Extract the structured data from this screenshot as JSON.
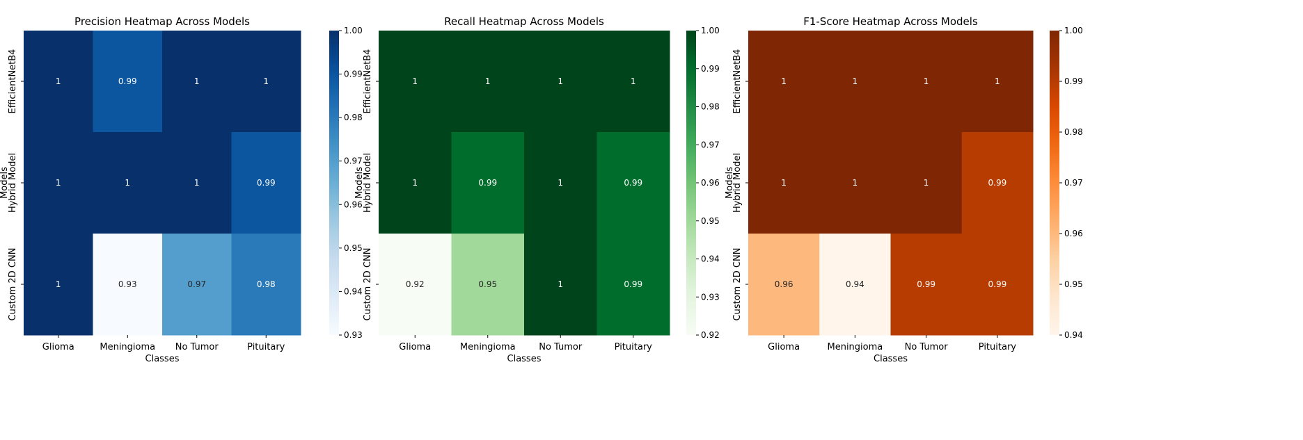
{
  "chart_data": [
    {
      "type": "heatmap",
      "title": "Precision Heatmap Across Models",
      "xlabel": "Classes",
      "ylabel": "Models",
      "x_categories": [
        "Glioma",
        "Meningioma",
        "No Tumor",
        "Pituitary"
      ],
      "y_categories": [
        "EfficientNetB4",
        "Hybrid Model",
        "Custom 2D CNN"
      ],
      "values": [
        [
          1.0,
          0.99,
          1.0,
          1.0
        ],
        [
          1.0,
          1.0,
          1.0,
          0.99
        ],
        [
          1.0,
          0.93,
          0.97,
          0.98
        ]
      ],
      "cell_labels": [
        [
          "1",
          "0.99",
          "1",
          "1"
        ],
        [
          "1",
          "1",
          "1",
          "0.99"
        ],
        [
          "1",
          "0.93",
          "0.97",
          "0.98"
        ]
      ],
      "colormap": "Blues",
      "color_low": "#f7fbff",
      "color_high": "#08306b",
      "vmin": 0.93,
      "vmax": 1.0,
      "colorbar_ticks": [
        "1.00",
        "0.99",
        "0.98",
        "0.97",
        "0.96",
        "0.95",
        "0.94",
        "0.93"
      ]
    },
    {
      "type": "heatmap",
      "title": "Recall Heatmap Across Models",
      "xlabel": "Classes",
      "ylabel": "Models",
      "x_categories": [
        "Glioma",
        "Meningioma",
        "No Tumor",
        "Pituitary"
      ],
      "y_categories": [
        "EfficientNetB4",
        "Hybrid Model",
        "Custom 2D CNN"
      ],
      "values": [
        [
          1.0,
          1.0,
          1.0,
          1.0
        ],
        [
          1.0,
          0.99,
          1.0,
          0.99
        ],
        [
          0.92,
          0.95,
          1.0,
          0.99
        ]
      ],
      "cell_labels": [
        [
          "1",
          "1",
          "1",
          "1"
        ],
        [
          "1",
          "0.99",
          "1",
          "0.99"
        ],
        [
          "0.92",
          "0.95",
          "1",
          "0.99"
        ]
      ],
      "colormap": "Greens",
      "color_low": "#f7fcf5",
      "color_high": "#00441b",
      "vmin": 0.92,
      "vmax": 1.0,
      "colorbar_ticks": [
        "1.00",
        "0.99",
        "0.98",
        "0.97",
        "0.96",
        "0.95",
        "0.94",
        "0.93",
        "0.92"
      ]
    },
    {
      "type": "heatmap",
      "title": "F1-Score Heatmap Across Models",
      "xlabel": "Classes",
      "ylabel": "Models",
      "x_categories": [
        "Glioma",
        "Meningioma",
        "No Tumor",
        "Pituitary"
      ],
      "y_categories": [
        "EfficientNetB4",
        "Hybrid Model",
        "Custom 2D CNN"
      ],
      "values": [
        [
          1.0,
          1.0,
          1.0,
          1.0
        ],
        [
          1.0,
          1.0,
          1.0,
          0.99
        ],
        [
          0.96,
          0.94,
          0.99,
          0.99
        ]
      ],
      "cell_labels": [
        [
          "1",
          "1",
          "1",
          "1"
        ],
        [
          "1",
          "1",
          "1",
          "0.99"
        ],
        [
          "0.96",
          "0.94",
          "0.99",
          "0.99"
        ]
      ],
      "colormap": "Oranges",
      "color_low": "#fff5eb",
      "color_high": "#7f2704",
      "vmin": 0.94,
      "vmax": 1.0,
      "colorbar_ticks": [
        "1.00",
        "0.99",
        "0.98",
        "0.97",
        "0.96",
        "0.95",
        "0.94"
      ]
    }
  ]
}
